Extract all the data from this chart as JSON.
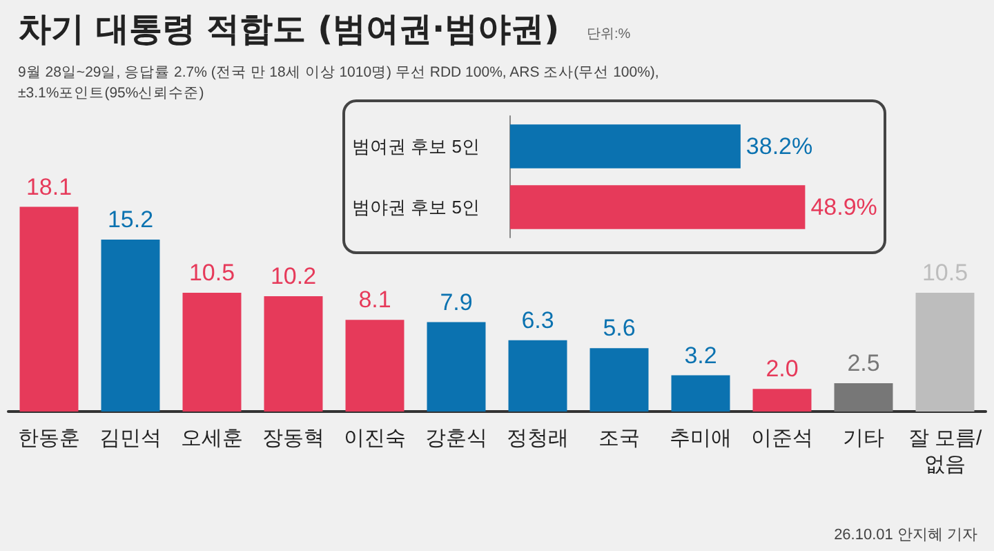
{
  "chart_data": [
    {
      "type": "bar",
      "title": "차기 대통령 적합도 (범여권·범야권)",
      "subtitle": "9월 28일~29일, 응답률 2.7% (전국 만 18세 이상 1010명) 무선 RDD 100%, ARS 조사(무선 100%), ±3.1%포인트(95%신뢰수준)",
      "annotations": [
        "단위:%",
        "26.10.01 안지혜 기자"
      ],
      "categories": [
        "한동훈",
        "김민석",
        "오세훈",
        "장동혁",
        "이진숙",
        "강훈식",
        "정청래",
        "조국",
        "추미애",
        "이준석",
        "기타",
        "잘 모름/없음"
      ],
      "values": [
        18.1,
        15.2,
        10.5,
        10.2,
        8.1,
        7.9,
        6.3,
        5.6,
        3.2,
        2.0,
        2.5,
        10.5
      ],
      "colors": [
        "#e63a5a",
        "#0b72b0",
        "#e63a5a",
        "#e63a5a",
        "#e63a5a",
        "#0b72b0",
        "#0b72b0",
        "#0b72b0",
        "#0b72b0",
        "#e63a5a",
        "#777777",
        "#bdbdbd"
      ],
      "value_labels": [
        "18.1",
        "15.2",
        "10.5",
        "10.2",
        "8.1",
        "7.9",
        "6.3",
        "5.6",
        "3.2",
        "2.0",
        "2.5",
        "10.5"
      ],
      "grid": false
    },
    {
      "type": "bar",
      "orientation": "horizontal",
      "categories": [
        "범여권 후보 5인",
        "범야권 후보 5인"
      ],
      "values": [
        38.2,
        48.9
      ],
      "colors": [
        "#0b72b0",
        "#e63a5a"
      ],
      "value_labels": [
        "38.2%",
        "48.9%"
      ],
      "grid": false
    }
  ]
}
